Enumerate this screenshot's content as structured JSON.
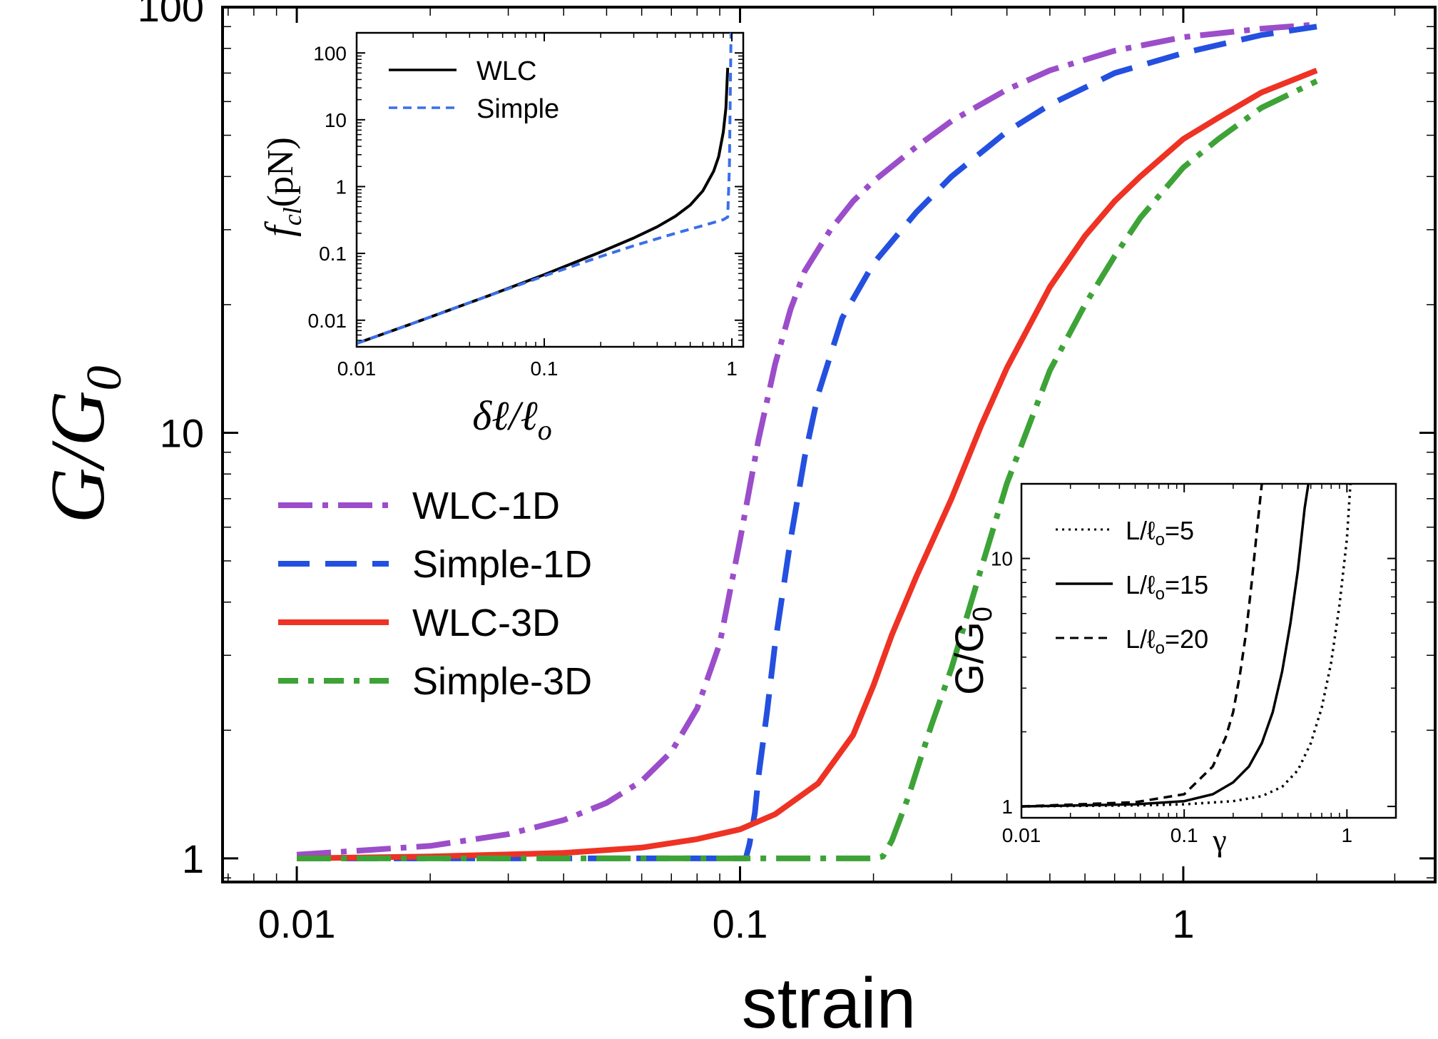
{
  "chart_data": [
    {
      "id": "main",
      "type": "line",
      "xlabel": "strain",
      "ylabel": "G/G",
      "ylabel_sub": "0",
      "xscale": "log",
      "yscale": "log",
      "xlim": [
        0.0068,
        3.7
      ],
      "ylim": [
        0.88,
        100
      ],
      "xticks": [
        {
          "v": 0.01,
          "label": "0.01"
        },
        {
          "v": 0.1,
          "label": "0.1"
        },
        {
          "v": 1,
          "label": "1"
        }
      ],
      "yticks": [
        {
          "v": 1,
          "label": "1"
        },
        {
          "v": 10,
          "label": "10"
        },
        {
          "v": 100,
          "label": "100"
        }
      ],
      "legend_position": "center-left",
      "series": [
        {
          "name": "WLC-1D",
          "color": "#9b4dca",
          "style": "dashdot",
          "x": [
            0.01,
            0.02,
            0.03,
            0.04,
            0.05,
            0.06,
            0.07,
            0.08,
            0.09,
            0.1,
            0.11,
            0.12,
            0.13,
            0.14,
            0.16,
            0.18,
            0.2,
            0.25,
            0.3,
            0.4,
            0.5,
            0.7,
            1.0,
            1.5,
            2.0
          ],
          "y": [
            1.02,
            1.07,
            1.14,
            1.23,
            1.35,
            1.52,
            1.78,
            2.25,
            3.2,
            5.6,
            9.6,
            14.5,
            19.5,
            24,
            30,
            35,
            39,
            47,
            54,
            64,
            71,
            79,
            85,
            89,
            91
          ]
        },
        {
          "name": "Simple-1D",
          "color": "#2450e0",
          "style": "dashed",
          "x": [
            0.01,
            0.02,
            0.04,
            0.06,
            0.08,
            0.1,
            0.103,
            0.105,
            0.108,
            0.11,
            0.115,
            0.12,
            0.13,
            0.14,
            0.15,
            0.17,
            0.2,
            0.25,
            0.3,
            0.4,
            0.5,
            0.7,
            1.0,
            1.5,
            2.0
          ],
          "y": [
            1.0,
            1.0,
            1.0,
            1.0,
            1.0,
            1.0,
            1.0,
            1.08,
            1.28,
            1.55,
            2.2,
            3.2,
            5.6,
            8.8,
            12.3,
            18.6,
            25,
            33,
            40,
            51,
            59,
            70,
            78,
            86,
            90
          ]
        },
        {
          "name": "WLC-3D",
          "color": "#ee3224",
          "style": "solid",
          "x": [
            0.01,
            0.02,
            0.04,
            0.06,
            0.08,
            0.1,
            0.12,
            0.15,
            0.18,
            0.2,
            0.22,
            0.25,
            0.3,
            0.35,
            0.4,
            0.5,
            0.6,
            0.7,
            0.8,
            1.0,
            1.2,
            1.5,
            2.0
          ],
          "y": [
            1.0,
            1.01,
            1.03,
            1.06,
            1.11,
            1.17,
            1.27,
            1.5,
            1.95,
            2.55,
            3.35,
            4.6,
            7.0,
            10.4,
            14.2,
            22,
            29,
            35,
            40,
            49,
            55,
            63,
            71
          ]
        },
        {
          "name": "Simple-3D",
          "color": "#3da337",
          "style": "dashdot",
          "x": [
            0.01,
            0.02,
            0.05,
            0.1,
            0.15,
            0.2,
            0.21,
            0.22,
            0.24,
            0.25,
            0.27,
            0.3,
            0.35,
            0.4,
            0.5,
            0.6,
            0.7,
            0.8,
            1.0,
            1.2,
            1.5,
            2.0
          ],
          "y": [
            1.0,
            1.0,
            1.0,
            1.0,
            1.0,
            1.0,
            1.01,
            1.1,
            1.4,
            1.6,
            2.05,
            2.8,
            4.8,
            7.6,
            14,
            20,
            26,
            32,
            42,
            49,
            58,
            67
          ]
        }
      ]
    },
    {
      "id": "inset_force",
      "type": "line",
      "xlabel": "δℓ/ℓ",
      "xlabel_sub": "o",
      "ylabel": "f",
      "ylabel_sub": "cl",
      "ylabel_unit": "(pN)",
      "xscale": "log",
      "yscale": "log",
      "xlim": [
        0.01,
        1.15
      ],
      "ylim": [
        0.004,
        200
      ],
      "xticks": [
        {
          "v": 0.01,
          "label": "0.01"
        },
        {
          "v": 0.1,
          "label": "0.1"
        },
        {
          "v": 1,
          "label": "1"
        }
      ],
      "yticks": [
        {
          "v": 0.01,
          "label": "0.01"
        },
        {
          "v": 0.1,
          "label": "0.1"
        },
        {
          "v": 1,
          "label": "1"
        },
        {
          "v": 10,
          "label": "10"
        },
        {
          "v": 100,
          "label": "100"
        }
      ],
      "legend_position": "top-left",
      "series": [
        {
          "name": "WLC",
          "color": "#000000",
          "style": "solid",
          "x": [
            0.01,
            0.02,
            0.05,
            0.1,
            0.2,
            0.3,
            0.4,
            0.5,
            0.6,
            0.7,
            0.8,
            0.85,
            0.9,
            0.93,
            0.95
          ],
          "y": [
            0.0045,
            0.009,
            0.023,
            0.048,
            0.105,
            0.17,
            0.25,
            0.36,
            0.53,
            0.86,
            1.7,
            2.8,
            6.5,
            15,
            60
          ]
        },
        {
          "name": "Simple",
          "color": "#3b6fe8",
          "style": "dashed",
          "x": [
            0.01,
            0.02,
            0.05,
            0.1,
            0.2,
            0.3,
            0.5,
            0.7,
            0.9,
            0.95,
            0.97,
            0.98,
            0.99
          ],
          "y": [
            0.0045,
            0.009,
            0.023,
            0.046,
            0.09,
            0.13,
            0.2,
            0.26,
            0.32,
            0.35,
            2,
            20,
            200
          ]
        }
      ]
    },
    {
      "id": "inset_modulus",
      "type": "line",
      "xlabel": "γ",
      "ylabel": "G/G",
      "ylabel_sub": "0",
      "xscale": "log",
      "yscale": "log",
      "xlim": [
        0.01,
        2
      ],
      "ylim": [
        0.9,
        20
      ],
      "xticks": [
        {
          "v": 0.01,
          "label": "0.01"
        },
        {
          "v": 0.1,
          "label": "0.1"
        },
        {
          "v": 1,
          "label": "1"
        }
      ],
      "yticks": [
        {
          "v": 1,
          "label": "1"
        },
        {
          "v": 10,
          "label": "10"
        }
      ],
      "legend_position": "top-left",
      "series": [
        {
          "name": "L/ℓ",
          "name_sub": "o",
          "name_suffix": "=5",
          "color": "#000000",
          "style": "dotted",
          "x": [
            0.01,
            0.05,
            0.1,
            0.2,
            0.3,
            0.4,
            0.5,
            0.6,
            0.7,
            0.8,
            0.9,
            1.0,
            1.05
          ],
          "y": [
            1.0,
            1.01,
            1.02,
            1.05,
            1.1,
            1.2,
            1.4,
            1.8,
            2.5,
            3.8,
            6.5,
            12,
            20
          ]
        },
        {
          "name": "L/ℓ",
          "name_sub": "o",
          "name_suffix": "=15",
          "color": "#000000",
          "style": "solid",
          "x": [
            0.01,
            0.05,
            0.1,
            0.15,
            0.2,
            0.25,
            0.3,
            0.35,
            0.4,
            0.45,
            0.5,
            0.55,
            0.58
          ],
          "y": [
            1.0,
            1.02,
            1.05,
            1.12,
            1.25,
            1.45,
            1.8,
            2.4,
            3.5,
            5.5,
            9.0,
            16,
            20
          ]
        },
        {
          "name": "L/ℓ",
          "name_sub": "o",
          "name_suffix": "=20",
          "color": "#000000",
          "style": "dashed",
          "x": [
            0.01,
            0.05,
            0.1,
            0.15,
            0.18,
            0.2,
            0.22,
            0.24,
            0.26,
            0.28,
            0.3
          ],
          "y": [
            1.0,
            1.04,
            1.12,
            1.45,
            1.9,
            2.4,
            3.4,
            5.0,
            8.0,
            13,
            20
          ]
        }
      ]
    }
  ]
}
